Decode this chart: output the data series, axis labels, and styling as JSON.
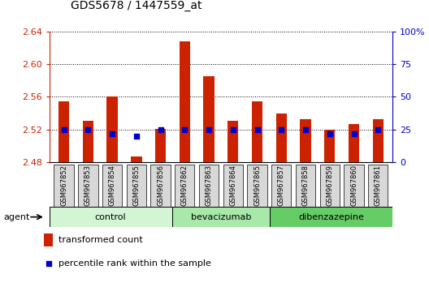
{
  "title": "GDS5678 / 1447559_at",
  "samples": [
    "GSM967852",
    "GSM967853",
    "GSM967854",
    "GSM967855",
    "GSM967856",
    "GSM967862",
    "GSM967863",
    "GSM967864",
    "GSM967865",
    "GSM967857",
    "GSM967858",
    "GSM967859",
    "GSM967860",
    "GSM967861"
  ],
  "transformed_counts": [
    2.555,
    2.531,
    2.56,
    2.487,
    2.521,
    2.628,
    2.585,
    2.531,
    2.555,
    2.54,
    2.533,
    2.52,
    2.527,
    2.533
  ],
  "percentile_ranks": [
    25,
    25,
    22,
    20,
    25,
    25,
    25,
    25,
    25,
    25,
    25,
    22,
    22,
    25
  ],
  "groups": [
    {
      "name": "control",
      "count": 5,
      "color": "#d4f5d4"
    },
    {
      "name": "bevacizumab",
      "count": 4,
      "color": "#a8e8a8"
    },
    {
      "name": "dibenzazepine",
      "count": 5,
      "color": "#66cc66"
    }
  ],
  "ylim_left": [
    2.48,
    2.64
  ],
  "ylim_right": [
    0,
    100
  ],
  "yticks_left": [
    2.48,
    2.52,
    2.56,
    2.6,
    2.64
  ],
  "yticks_right": [
    0,
    25,
    50,
    75,
    100
  ],
  "ytick_labels_right": [
    "0",
    "25",
    "50",
    "75",
    "100%"
  ],
  "bar_color": "#cc2200",
  "dot_color": "#0000cc",
  "title_color": "#000000",
  "left_axis_color": "#cc2200",
  "right_axis_color": "#0000cc",
  "plot_bg_color": "#ffffff",
  "tick_bg_color": "#d8d8d8",
  "agent_label": "agent",
  "legend1": "transformed count",
  "legend2": "percentile rank within the sample"
}
